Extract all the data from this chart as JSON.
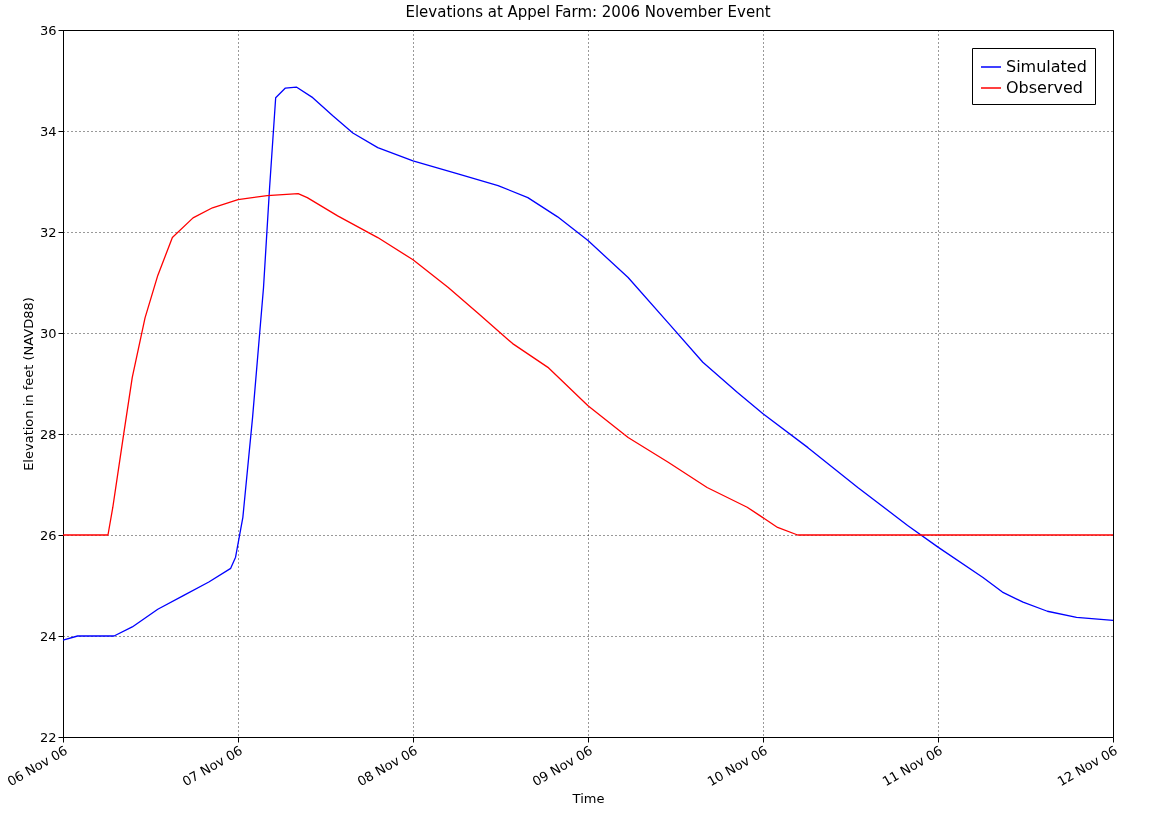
{
  "chart_data": {
    "type": "line",
    "title": "Elevations at Appel Farm: 2006 November Event",
    "xlabel": "Time",
    "ylabel": "Elevation in feet (NAVD88)",
    "series": [
      {
        "name": "Simulated",
        "color": "#0000ff",
        "x": [
          "2006-11-06T00:00",
          "2006-11-06T02:00",
          "2006-11-06T07:00",
          "2006-11-06T09:30",
          "2006-11-06T13:00",
          "2006-11-06T16:30",
          "2006-11-06T20:00",
          "2006-11-06T23:00",
          "2006-11-06T23:40",
          "2006-11-07T00:40",
          "2006-11-07T02:00",
          "2006-11-07T03:30",
          "2006-11-07T04:20",
          "2006-11-07T05:10",
          "2006-11-07T06:30",
          "2006-11-07T08:00",
          "2006-11-07T10:15",
          "2006-11-07T13:00",
          "2006-11-07T15:45",
          "2006-11-07T19:10",
          "2006-11-08T00:00",
          "2006-11-08T06:10",
          "2006-11-08T11:40",
          "2006-11-08T15:45",
          "2006-11-08T19:50",
          "2006-11-09T00:00",
          "2006-11-09T05:30",
          "2006-11-09T11:00",
          "2006-11-09T15:45",
          "2006-11-09T20:30",
          "2006-11-10T00:00",
          "2006-11-10T06:10",
          "2006-11-10T13:00",
          "2006-11-10T19:50",
          "2006-11-11T00:00",
          "2006-11-11T06:10",
          "2006-11-11T08:50",
          "2006-11-11T11:40",
          "2006-11-11T15:00",
          "2006-11-11T19:00",
          "2006-11-12T00:00"
        ],
        "values": [
          23.92,
          24.0,
          24.0,
          24.18,
          24.53,
          24.8,
          25.07,
          25.34,
          25.56,
          26.35,
          28.33,
          30.9,
          32.88,
          34.66,
          34.85,
          34.87,
          34.66,
          34.3,
          33.96,
          33.67,
          33.41,
          33.15,
          32.92,
          32.68,
          32.3,
          31.83,
          31.1,
          30.2,
          29.42,
          28.82,
          28.4,
          27.73,
          26.94,
          26.19,
          25.76,
          25.16,
          24.87,
          24.67,
          24.49,
          24.37,
          24.31
        ]
      },
      {
        "name": "Observed",
        "color": "#ff0000",
        "x": [
          "2006-11-06T00:00",
          "2006-11-06T06:10",
          "2006-11-06T06:50",
          "2006-11-06T08:15",
          "2006-11-06T09:30",
          "2006-11-06T11:15",
          "2006-11-06T13:00",
          "2006-11-06T15:00",
          "2006-11-06T17:50",
          "2006-11-06T20:30",
          "2006-11-07T00:00",
          "2006-11-07T04:00",
          "2006-11-07T08:15",
          "2006-11-07T09:30",
          "2006-11-07T13:40",
          "2006-11-07T19:10",
          "2006-11-08T00:00",
          "2006-11-08T04:50",
          "2006-11-08T09:00",
          "2006-11-08T13:40",
          "2006-11-08T18:30",
          "2006-11-09T00:00",
          "2006-11-09T05:30",
          "2006-11-09T11:00",
          "2006-11-09T16:20",
          "2006-11-09T21:50",
          "2006-11-10T02:00",
          "2006-11-10T04:45",
          "2006-11-10T13:00",
          "2006-11-12T00:00"
        ],
        "values": [
          26.0,
          26.0,
          26.55,
          27.93,
          29.12,
          30.3,
          31.14,
          31.89,
          32.28,
          32.48,
          32.64,
          32.72,
          32.76,
          32.68,
          32.32,
          31.89,
          31.45,
          30.9,
          30.38,
          29.79,
          29.32,
          28.56,
          27.93,
          27.44,
          26.94,
          26.55,
          26.15,
          26.0,
          26.0,
          26.0
        ]
      }
    ],
    "xlim": [
      "2006-11-06",
      "2006-11-12"
    ],
    "xticks": [
      {
        "value": "2006-11-06",
        "label": "06 Nov 06"
      },
      {
        "value": "2006-11-07",
        "label": "07 Nov 06"
      },
      {
        "value": "2006-11-08",
        "label": "08 Nov 06"
      },
      {
        "value": "2006-11-09",
        "label": "09 Nov 06"
      },
      {
        "value": "2006-11-10",
        "label": "10 Nov 06"
      },
      {
        "value": "2006-11-11",
        "label": "11 Nov 06"
      },
      {
        "value": "2006-11-12",
        "label": "12 Nov 06"
      }
    ],
    "ylim": [
      22,
      36
    ],
    "yticks": [
      22,
      24,
      26,
      28,
      30,
      32,
      34,
      36
    ],
    "grid": true,
    "legend": "top right",
    "line_style": "solid",
    "marker": "none"
  }
}
